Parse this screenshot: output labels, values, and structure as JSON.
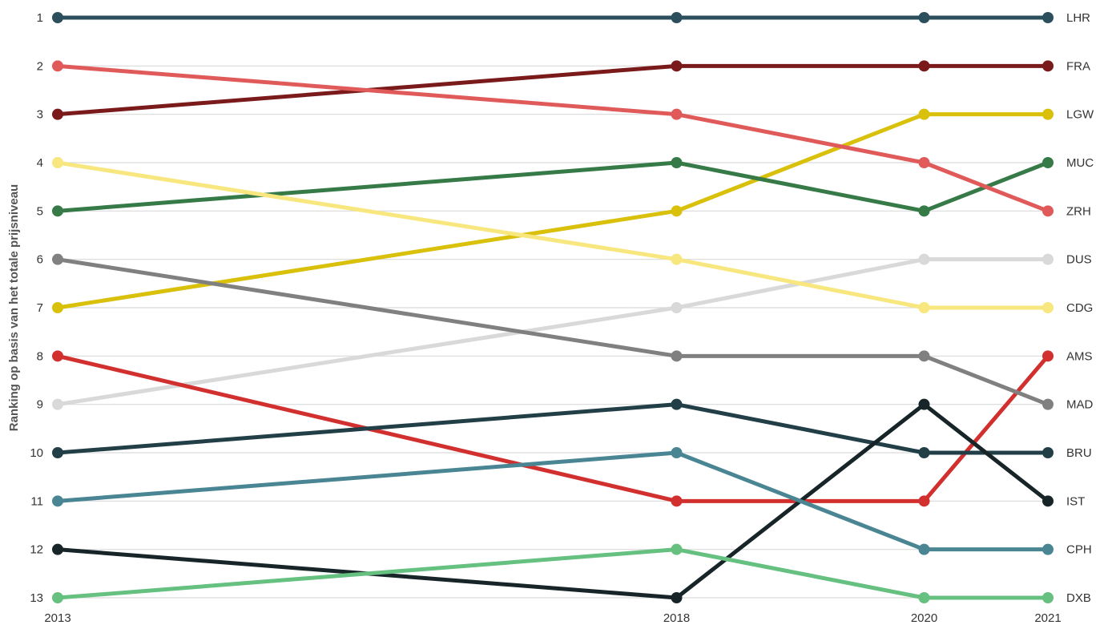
{
  "chart_data": {
    "type": "line",
    "ylabel": "Ranking op basis van het totale prijsniveau",
    "x": [
      "2013",
      "2018",
      "2020",
      "2021"
    ],
    "x_numeric": [
      2013,
      2018,
      2020,
      2021
    ],
    "ylim": [
      1,
      13
    ],
    "y_inverted": true,
    "y_ticks": [
      1,
      2,
      3,
      4,
      5,
      6,
      7,
      8,
      9,
      10,
      11,
      12,
      13
    ],
    "grid": "horizontal",
    "legend": "direct labels at right end",
    "series": [
      {
        "name": "LHR",
        "values": [
          1,
          1,
          1,
          1
        ],
        "color": "#2b4f5c"
      },
      {
        "name": "FRA",
        "values": [
          3,
          2,
          2,
          2
        ],
        "color": "#7a1a1a"
      },
      {
        "name": "LGW",
        "values": [
          7,
          5,
          3,
          3
        ],
        "color": "#d9c00a"
      },
      {
        "name": "MUC",
        "values": [
          5,
          4,
          5,
          4
        ],
        "color": "#357a47"
      },
      {
        "name": "ZRH",
        "values": [
          2,
          3,
          4,
          5
        ],
        "color": "#e05a5a"
      },
      {
        "name": "DUS",
        "values": [
          9,
          7,
          6,
          6
        ],
        "color": "#d9d9d9"
      },
      {
        "name": "CDG",
        "values": [
          4,
          6,
          7,
          7
        ],
        "color": "#f7e77e"
      },
      {
        "name": "AMS",
        "values": [
          8,
          11,
          11,
          8
        ],
        "color": "#d1302f"
      },
      {
        "name": "MAD",
        "values": [
          6,
          8,
          8,
          9
        ],
        "color": "#808080"
      },
      {
        "name": "BRU",
        "values": [
          10,
          9,
          10,
          10
        ],
        "color": "#223f47"
      },
      {
        "name": "IST",
        "values": [
          12,
          13,
          9,
          11
        ],
        "color": "#172528"
      },
      {
        "name": "CPH",
        "values": [
          11,
          10,
          12,
          12
        ],
        "color": "#4a8594"
      },
      {
        "name": "DXB",
        "values": [
          13,
          12,
          13,
          13
        ],
        "color": "#66c080"
      }
    ]
  }
}
